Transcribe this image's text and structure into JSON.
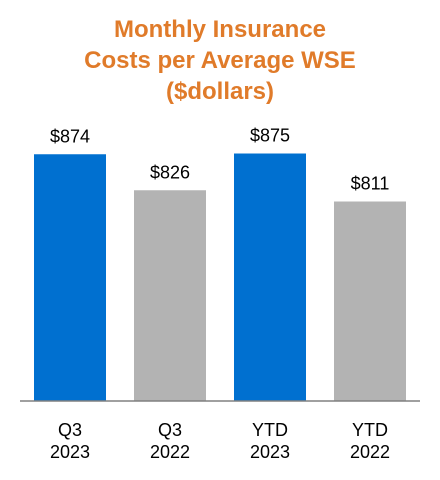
{
  "title_lines": [
    "Monthly Insurance",
    "Costs per Average WSE",
    "($dollars)"
  ],
  "colors": {
    "title": "#E07B2A",
    "highlight_bar": "#0070D0",
    "comparison_bar": "#B3B3B3",
    "axis": "#808080"
  },
  "chart_data": {
    "type": "bar",
    "title": "Monthly Insurance Costs per Average WSE ($dollars)",
    "categories": [
      "Q3\n2023",
      "Q3\n2022",
      "YTD\n2023",
      "YTD\n2022"
    ],
    "category_lines": [
      [
        "Q3",
        "2023"
      ],
      [
        "Q3",
        "2022"
      ],
      [
        "YTD",
        "2023"
      ],
      [
        "YTD",
        "2022"
      ]
    ],
    "values": [
      874,
      826,
      875,
      811
    ],
    "value_labels": [
      "$874",
      "$826",
      "$875",
      "$811"
    ],
    "bar_colors": [
      "#0070D0",
      "#B3B3B3",
      "#0070D0",
      "#B3B3B3"
    ],
    "xlabel": "",
    "ylabel": "",
    "ylim": [
      0,
      875
    ],
    "grid": false,
    "legend": "none"
  }
}
